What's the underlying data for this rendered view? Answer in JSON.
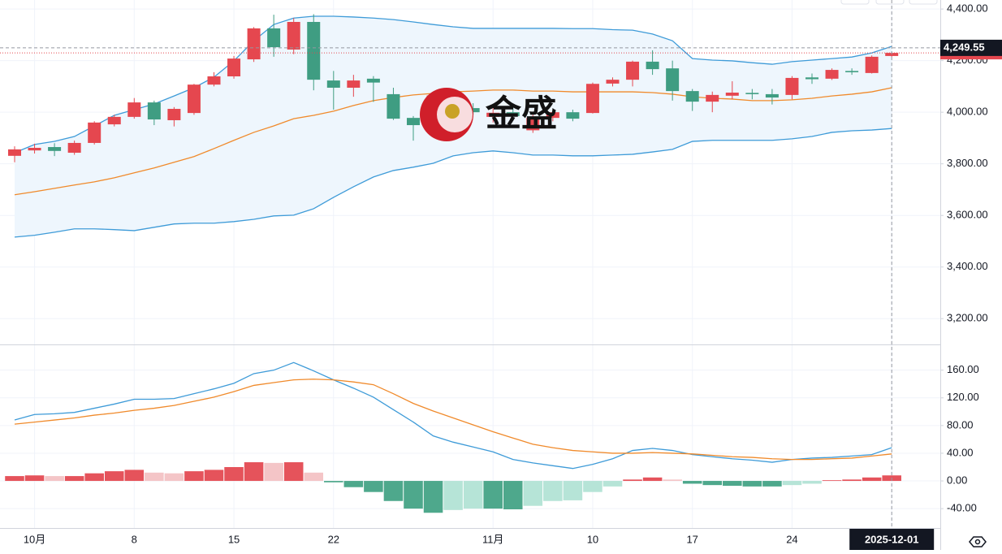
{
  "chart_data": [
    {
      "type": "candlestick",
      "categories": [
        null,
        "10月",
        null,
        null,
        null,
        null,
        "8",
        null,
        null,
        null,
        null,
        "15",
        null,
        null,
        null,
        null,
        "22",
        null,
        null,
        null,
        null,
        null,
        null,
        null,
        "11月",
        null,
        null,
        null,
        null,
        "10",
        null,
        null,
        null,
        null,
        "17",
        null,
        null,
        null,
        null,
        "24",
        null,
        null,
        null,
        null,
        "2025-12-01"
      ],
      "open": [
        3831,
        3852,
        3865,
        3843,
        3881,
        3953,
        3982,
        4038,
        3969,
        3997,
        4107,
        4139,
        4205,
        4325,
        4243,
        4350,
        4123,
        4095,
        4130,
        4070,
        3978,
        3995,
        4015,
        4016,
        3982,
        4000,
        3930,
        3978,
        4000,
        3997,
        4111,
        4126,
        4196,
        4170,
        4082,
        4041,
        4064,
        4075,
        4070,
        4067,
        4135,
        4130,
        4160,
        4152,
        4218
      ],
      "high": [
        3868,
        3878,
        3880,
        3890,
        3965,
        3990,
        4055,
        4045,
        4020,
        4110,
        4155,
        4218,
        4330,
        4378,
        4365,
        4380,
        4160,
        4145,
        4140,
        4095,
        3985,
        4075,
        4030,
        4035,
        4030,
        4020,
        3990,
        4010,
        4010,
        4115,
        4135,
        4200,
        4240,
        4200,
        4090,
        4080,
        4120,
        4090,
        4090,
        4140,
        4150,
        4170,
        4170,
        4220,
        4232
      ],
      "low": [
        3806,
        3840,
        3830,
        3835,
        3875,
        3945,
        3975,
        3950,
        3945,
        3990,
        4100,
        4130,
        4195,
        4215,
        4225,
        4085,
        4010,
        4060,
        4040,
        3970,
        3890,
        3985,
        3970,
        3990,
        3960,
        3975,
        3920,
        3965,
        3965,
        3995,
        4100,
        4100,
        4145,
        4045,
        4005,
        4000,
        4050,
        4050,
        4030,
        4050,
        4110,
        4125,
        4145,
        4150,
        4215
      ],
      "close": [
        3856,
        3862,
        3850,
        3881,
        3960,
        3982,
        4038,
        3972,
        4013,
        4107,
        4139,
        4208,
        4325,
        4252,
        4350,
        4126,
        4095,
        4123,
        4115,
        3975,
        3950,
        4065,
        3985,
        4000,
        3998,
        3985,
        3978,
        4000,
        3975,
        4110,
        4126,
        4196,
        4167,
        4082,
        4041,
        4067,
        4076,
        4070,
        4057,
        4133,
        4128,
        4164,
        4155,
        4215,
        4230
      ],
      "up_color": "#e5474f",
      "down_color": "#3f9d82",
      "bands": [
        {
          "color": "#3e9bd8",
          "values": [
            3843,
            3875,
            3887,
            3906,
            3947,
            3988,
            4010,
            4032,
            4063,
            4095,
            4136,
            4199,
            4277,
            4340,
            4365,
            4372,
            4372,
            4369,
            4365,
            4359,
            4350,
            4340,
            4331,
            4325,
            4325,
            4325,
            4325,
            4325,
            4324,
            4324,
            4320,
            4318,
            4303,
            4277,
            4208,
            4202,
            4199,
            4192,
            4186,
            4196,
            4202,
            4208,
            4214,
            4230,
            4255
          ]
        },
        {
          "color": "#f08a2b",
          "values": [
            3680,
            3692,
            3705,
            3718,
            3730,
            3746,
            3765,
            3784,
            3806,
            3828,
            3859,
            3891,
            3922,
            3947,
            3975,
            3988,
            4004,
            4026,
            4045,
            4057,
            4067,
            4073,
            4079,
            4082,
            4086,
            4086,
            4082,
            4082,
            4079,
            4079,
            4079,
            4079,
            4076,
            4070,
            4060,
            4054,
            4051,
            4045,
            4045,
            4048,
            4054,
            4063,
            4070,
            4079,
            4095
          ]
        },
        {
          "color": "#3e9bd8",
          "values": [
            3516,
            3523,
            3535,
            3548,
            3548,
            3545,
            3541,
            3554,
            3567,
            3570,
            3570,
            3576,
            3585,
            3598,
            3601,
            3626,
            3670,
            3711,
            3749,
            3774,
            3787,
            3802,
            3831,
            3843,
            3850,
            3843,
            3834,
            3834,
            3831,
            3831,
            3834,
            3837,
            3846,
            3856,
            3887,
            3891,
            3891,
            3891,
            3891,
            3897,
            3906,
            3922,
            3928,
            3931,
            3937
          ]
        }
      ],
      "band_fill": "#eef6fd",
      "ylim": [
        3100,
        4435
      ],
      "yticks": [
        {
          "value": 3200,
          "label": "3,200.00"
        },
        {
          "value": 3400,
          "label": "3,400.00"
        },
        {
          "value": 3600,
          "label": "3,600.00"
        },
        {
          "value": 3800,
          "label": "3,800.00"
        },
        {
          "value": 4000,
          "label": "4,000.00"
        },
        {
          "value": 4200,
          "label": "4,200.00"
        },
        {
          "value": 4400,
          "label": "4,400.00"
        }
      ],
      "crosshair_price": {
        "value": 4249.55,
        "label": "4,249.55"
      },
      "grid": true,
      "watermark": "金盛"
    },
    {
      "type": "macd",
      "lines": [
        {
          "color": "#3e9bd8",
          "values": [
            88,
            96,
            97,
            99,
            105,
            111,
            118,
            118,
            119,
            126,
            133,
            141,
            155,
            160,
            171,
            159,
            146,
            134,
            121,
            103,
            85,
            65,
            56,
            49,
            42,
            31,
            26,
            22,
            18,
            24,
            32,
            44,
            47,
            44,
            38,
            35,
            32,
            30,
            27,
            31,
            33,
            34,
            36,
            38,
            48
          ]
        },
        {
          "color": "#f08a2b",
          "values": [
            82,
            85,
            88,
            91,
            95,
            98,
            102,
            105,
            109,
            115,
            121,
            129,
            138,
            142,
            146,
            147,
            146,
            143,
            139,
            126,
            112,
            101,
            91,
            81,
            71,
            62,
            53,
            48,
            44,
            42,
            40,
            40,
            41,
            40,
            39,
            37,
            35,
            34,
            32,
            31,
            31,
            32,
            33,
            36,
            39
          ]
        }
      ],
      "histogram": {
        "values": [
          7,
          8,
          7,
          7,
          11,
          14,
          16,
          12,
          11,
          14,
          16,
          20,
          27,
          26,
          27,
          12,
          -2,
          -9,
          -16,
          -29,
          -40,
          -46,
          -42,
          -40,
          -40,
          -41,
          -36,
          -29,
          -28,
          -16,
          -8,
          2,
          5,
          2,
          -4,
          -6,
          -7,
          -8,
          -8,
          -6,
          -4,
          1,
          2,
          5,
          8
        ],
        "colors": {
          "up_strong": "#e5535b",
          "up_weak": "#f4c5c7",
          "down_strong": "#4ea88c",
          "down_weak": "#b6e4d7"
        }
      },
      "ylim": [
        -68,
        196
      ],
      "yticks": [
        {
          "value": -40,
          "label": "-40.00"
        },
        {
          "value": 0,
          "label": "0.00"
        },
        {
          "value": 40,
          "label": "40.00"
        },
        {
          "value": 80,
          "label": "80.00"
        },
        {
          "value": 120,
          "label": "120.00"
        },
        {
          "value": 160,
          "label": "160.00"
        }
      ],
      "grid": true
    }
  ]
}
